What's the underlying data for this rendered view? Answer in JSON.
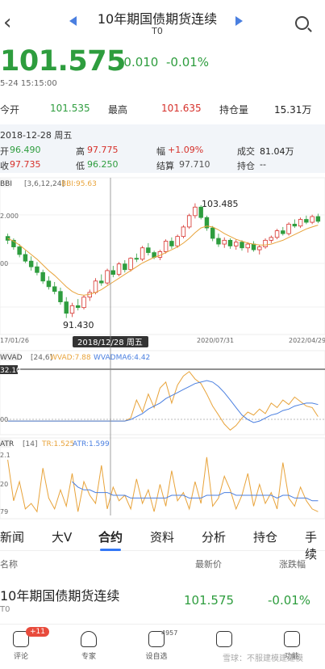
{
  "header": {
    "title": "10年期国债期货连续",
    "subtitle": "T0"
  },
  "quote": {
    "price": "101.575",
    "change": "-0.010",
    "change_pct": "-0.01%",
    "timestamp": "5-24 15:15:00"
  },
  "stats": {
    "open_label": "今开",
    "open_value": "101.535",
    "high_label": "最高",
    "high_value": "101.635",
    "oi_label": "持仓量",
    "oi_value": "15.31万"
  },
  "infobox": {
    "date": "2018-12-28 周五",
    "open_label": "开",
    "open_value": "96.490",
    "high_label": "高",
    "high_value": "97.775",
    "amp_label": "幅",
    "amp_value": "+1.09%",
    "vol_label": "成交",
    "vol_value": "81.04万",
    "close_label": "收",
    "close_value": "97.735",
    "low_label": "低",
    "low_value": "96.250",
    "settle_label": "结算",
    "settle_value": "97.710",
    "oi_label": "持仓",
    "oi_value": "--"
  },
  "chart_data": [
    {
      "type": "candlestick",
      "indicator_label": "BBI",
      "indicator_params": "[3,6,12,24]",
      "indicator_value": "BBI:95.63",
      "y_tick_top": "2.000",
      "y_tick_mid": "00",
      "max_label": "103.485",
      "min_label": "91.430",
      "x_ticks": [
        "17/01/26",
        "2020/07/31",
        "2022/04/29"
      ],
      "crosshair_label": "2018/12/28 周五",
      "ylim": [
        90,
        105
      ],
      "candles": [
        [
          100.0,
          100.3,
          99.2,
          99.6
        ],
        [
          99.6,
          99.8,
          98.6,
          98.9
        ],
        [
          98.9,
          99.2,
          97.8,
          98.1
        ],
        [
          98.1,
          98.5,
          97.2,
          97.4
        ],
        [
          97.4,
          97.9,
          96.4,
          96.8
        ],
        [
          96.8,
          97.3,
          95.9,
          96.2
        ],
        [
          96.2,
          96.5,
          95.0,
          95.3
        ],
        [
          95.3,
          95.8,
          94.4,
          94.7
        ],
        [
          94.7,
          95.2,
          93.9,
          94.2
        ],
        [
          94.2,
          94.6,
          92.8,
          93.1
        ],
        [
          93.1,
          93.6,
          91.4,
          91.9
        ],
        [
          91.9,
          93.0,
          91.5,
          92.7
        ],
        [
          92.7,
          93.4,
          92.2,
          92.5
        ],
        [
          92.5,
          93.8,
          92.3,
          93.6
        ],
        [
          93.6,
          94.4,
          93.2,
          94.1
        ],
        [
          94.1,
          95.6,
          93.9,
          95.3
        ],
        [
          95.3,
          96.0,
          94.8,
          95.1
        ],
        [
          95.1,
          96.6,
          94.9,
          96.4
        ],
        [
          96.4,
          96.9,
          95.7,
          96.0
        ],
        [
          96.0,
          97.3,
          95.8,
          97.1
        ],
        [
          97.1,
          97.5,
          96.2,
          96.5
        ],
        [
          96.5,
          97.8,
          96.3,
          97.7
        ],
        [
          97.7,
          98.2,
          97.3,
          97.6
        ],
        [
          97.6,
          99.0,
          97.4,
          98.8
        ],
        [
          98.8,
          99.3,
          98.0,
          98.3
        ],
        [
          98.3,
          98.5,
          97.6,
          97.8
        ],
        [
          97.8,
          98.6,
          97.5,
          98.4
        ],
        [
          98.4,
          99.7,
          98.2,
          99.5
        ],
        [
          99.5,
          99.9,
          98.7,
          99.0
        ],
        [
          99.0,
          100.2,
          98.8,
          100.0
        ],
        [
          100.0,
          101.2,
          99.8,
          101.0
        ],
        [
          101.0,
          102.4,
          100.8,
          102.2
        ],
        [
          102.2,
          103.5,
          101.9,
          103.1
        ],
        [
          103.1,
          103.3,
          101.8,
          102.0
        ],
        [
          102.0,
          102.2,
          100.6,
          100.9
        ],
        [
          100.9,
          101.1,
          99.5,
          99.8
        ],
        [
          99.8,
          100.3,
          98.9,
          99.2
        ],
        [
          99.2,
          99.9,
          98.8,
          99.6
        ],
        [
          99.6,
          99.8,
          98.7,
          99.0
        ],
        [
          99.0,
          99.7,
          98.6,
          99.4
        ],
        [
          99.4,
          99.6,
          98.5,
          98.8
        ],
        [
          98.8,
          99.4,
          98.3,
          99.2
        ],
        [
          99.2,
          99.5,
          98.4,
          98.6
        ],
        [
          98.6,
          99.1,
          98.1,
          98.9
        ],
        [
          98.9,
          99.8,
          98.7,
          99.6
        ],
        [
          99.6,
          100.1,
          99.3,
          99.9
        ],
        [
          99.9,
          100.8,
          99.7,
          100.6
        ],
        [
          100.6,
          101.0,
          100.1,
          100.3
        ],
        [
          100.3,
          101.5,
          100.1,
          101.3
        ],
        [
          101.3,
          101.8,
          100.9,
          101.1
        ],
        [
          101.1,
          102.0,
          100.9,
          101.8
        ],
        [
          101.8,
          102.2,
          101.3,
          101.5
        ],
        [
          101.5,
          102.3,
          101.3,
          102.1
        ],
        [
          102.1,
          102.4,
          101.4,
          101.6
        ]
      ],
      "bbi": [
        99.8,
        99.5,
        99.1,
        98.6,
        98.1,
        97.6,
        97.0,
        96.4,
        95.9,
        95.3,
        94.7,
        94.2,
        93.9,
        93.8,
        93.9,
        94.1,
        94.4,
        94.8,
        95.2,
        95.6,
        96.0,
        96.4,
        96.8,
        97.2,
        97.5,
        97.8,
        98.0,
        98.3,
        98.6,
        98.9,
        99.3,
        99.8,
        100.4,
        100.9,
        101.1,
        101.0,
        100.7,
        100.3,
        100.0,
        99.7,
        99.5,
        99.3,
        99.2,
        99.1,
        99.1,
        99.2,
        99.4,
        99.6,
        99.9,
        100.2,
        100.5,
        100.8,
        101.0,
        101.2
      ]
    },
    {
      "type": "line",
      "indicator_label": "WVAD",
      "indicator_params": "[24,6]",
      "series_a_label": "WVAD:7.88",
      "series_b_label": "WVADMA6:4.42",
      "y_tick_top": "32.10",
      "y_tick_bottom": "00",
      "ylim": [
        -8,
        34
      ],
      "wvad": [
        0,
        0,
        0,
        0,
        0,
        0,
        0,
        0,
        0,
        0,
        0,
        0,
        0,
        0,
        0,
        0,
        0,
        0,
        0,
        0,
        0,
        2,
        14,
        6,
        18,
        9,
        22,
        26,
        12,
        24,
        30,
        33,
        28,
        25,
        18,
        10,
        4,
        -2,
        -6,
        -3,
        2,
        6,
        4,
        8,
        5,
        12,
        9,
        14,
        11,
        16,
        13,
        10,
        9,
        3
      ],
      "wvadma6": [
        0,
        0,
        0,
        0,
        0,
        0,
        0,
        0,
        0,
        0,
        0,
        0,
        0,
        0,
        0,
        0,
        0,
        0,
        0,
        0,
        0,
        1,
        3,
        5,
        8,
        10,
        12,
        15,
        17,
        19,
        21,
        23,
        25,
        26,
        27,
        26,
        23,
        19,
        14,
        9,
        4,
        1,
        -1,
        0,
        2,
        4,
        5,
        7,
        8,
        10,
        11,
        12,
        12,
        11
      ]
    },
    {
      "type": "line",
      "indicator_label": "ATR",
      "indicator_params": "[14]",
      "series_a_label": "TR:1.525",
      "series_b_label": "ATR:1.599",
      "y_tick_top": "2.1",
      "y_tick_mid": "20",
      "y_tick_bottom": "79",
      "ylim": [
        0.6,
        3.0
      ],
      "tr": [
        2.7,
        1.2,
        1.9,
        0.9,
        1.1,
        0.8,
        2.4,
        1.3,
        0.9,
        1.6,
        1.0,
        2.2,
        0.8,
        1.9,
        1.4,
        1.1,
        2.5,
        0.9,
        1.7,
        1.2,
        1.4,
        0.9,
        2.0,
        1.1,
        1.6,
        0.8,
        1.8,
        1.0,
        2.3,
        1.2,
        1.5,
        0.9,
        1.9,
        1.1,
        2.8,
        1.0,
        1.3,
        2.1,
        1.6,
        0.9,
        1.4,
        2.2,
        1.0,
        1.8,
        1.1,
        1.5,
        0.9,
        2.6,
        1.3,
        1.0,
        1.7,
        1.2,
        0.9,
        0.8
      ],
      "atr": [
        null,
        null,
        null,
        null,
        null,
        null,
        null,
        null,
        null,
        null,
        null,
        1.9,
        1.7,
        1.6,
        1.6,
        1.5,
        1.5,
        1.5,
        1.4,
        1.4,
        1.4,
        1.3,
        1.3,
        1.3,
        1.3,
        1.3,
        1.3,
        1.3,
        1.4,
        1.4,
        1.4,
        1.3,
        1.3,
        1.3,
        1.4,
        1.4,
        1.4,
        1.5,
        1.5,
        1.4,
        1.4,
        1.4,
        1.4,
        1.4,
        1.4,
        1.4,
        1.3,
        1.4,
        1.4,
        1.3,
        1.3,
        1.3,
        1.2,
        1.2
      ]
    }
  ],
  "tabs": [
    "新闻",
    "大V",
    "合约",
    "资料",
    "分析",
    "持仓",
    "手续"
  ],
  "list": {
    "header_name": "名称",
    "header_price": "最新价",
    "header_pct": "涨跌幅",
    "row_name": "10年期国债期货连续",
    "row_code": "T0",
    "row_price": "101.575",
    "row_pct": "-0.01%"
  },
  "bottom_bar": {
    "items": [
      "评论",
      "专家",
      "设自选",
      "",
      "功能"
    ],
    "badge": "+11",
    "count": "4957",
    "watermark": "雪球：不服建模建建模"
  },
  "colors": {
    "up": "#d6302a",
    "down": "#2e9d3e",
    "accent": "#3478f6",
    "orange": "#e8a33a",
    "blue": "#4a7fe0"
  }
}
